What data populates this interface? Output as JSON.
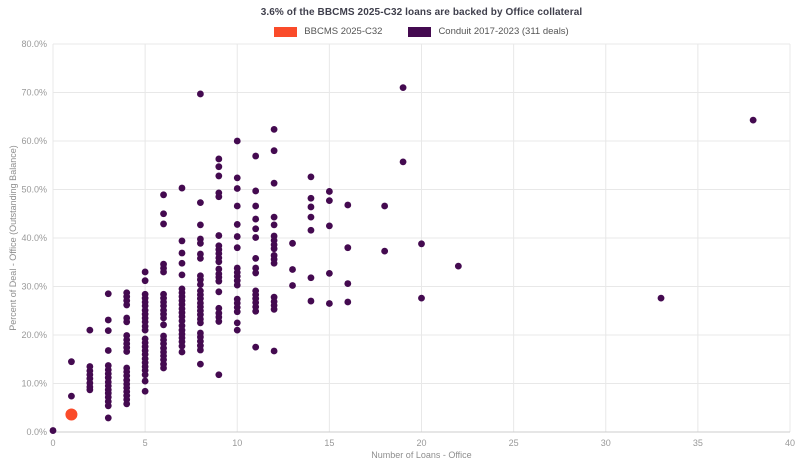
{
  "header": {
    "title": "3.6% of the BBCMS 2025-C32 loans are backed by Office collateral"
  },
  "legend": {
    "items": [
      {
        "label": "BBCMS 2025-C32",
        "color": "#fa4b2a"
      },
      {
        "label": "Conduit 2017-2023 (311 deals)",
        "color": "#440a50"
      }
    ]
  },
  "colors": {
    "background": "#ffffff",
    "grid": "#e8e8e8",
    "axis_line": "#cccccc",
    "title_text": "#3f3f4c",
    "tick_text": "#999999",
    "axis_label_text": "#8e8e8e",
    "legend_text": "#555555",
    "bbcms_orange": "#fa4b2a",
    "conduit_purple": "#440a50"
  },
  "chart_data": {
    "type": "scatter",
    "title": "3.6% of the BBCMS 2025-C32 loans are backed by Office collateral",
    "xlabel": "Number of Loans - Office",
    "ylabel": "Percent of Deal - Office (Outstanding Balance)",
    "xlim": [
      0,
      40
    ],
    "ylim": [
      0,
      80
    ],
    "x_ticks": [
      0,
      5,
      10,
      15,
      20,
      25,
      30,
      35,
      40
    ],
    "x_tick_labels": [
      "0",
      "5",
      "10",
      "15",
      "20",
      "25",
      "30",
      "35",
      "40"
    ],
    "y_ticks": [
      0,
      10,
      20,
      30,
      40,
      50,
      60,
      70,
      80
    ],
    "y_tick_labels": [
      "0.0%",
      "10.0%",
      "20.0%",
      "30.0%",
      "40.0%",
      "50.0%",
      "60.0%",
      "70.0%",
      "80.0%"
    ],
    "grid": true,
    "legend_position": "top-center",
    "series": [
      {
        "name": "Conduit 2017-2023 (311 deals)",
        "color": "#440a50",
        "marker_radius": 3.4,
        "points": [
          [
            0,
            0.3
          ],
          [
            1,
            14.5
          ],
          [
            1,
            7.4
          ],
          [
            2,
            21.0
          ],
          [
            2,
            13.5
          ],
          [
            2,
            12.6
          ],
          [
            2,
            11.8
          ],
          [
            2,
            11.0
          ],
          [
            2,
            10.1
          ],
          [
            2,
            9.3
          ],
          [
            2,
            8.7
          ],
          [
            3,
            28.5
          ],
          [
            3,
            23.1
          ],
          [
            3,
            20.9
          ],
          [
            3,
            16.8
          ],
          [
            3,
            13.7
          ],
          [
            3,
            12.8
          ],
          [
            3,
            12.0
          ],
          [
            3,
            11.2
          ],
          [
            3,
            10.3
          ],
          [
            3,
            9.5
          ],
          [
            3,
            8.7
          ],
          [
            3,
            8.0
          ],
          [
            3,
            7.2
          ],
          [
            3,
            6.3
          ],
          [
            3,
            5.4
          ],
          [
            3,
            2.9
          ],
          [
            4,
            28.7
          ],
          [
            4,
            27.9
          ],
          [
            4,
            27.1
          ],
          [
            4,
            26.2
          ],
          [
            4,
            23.5
          ],
          [
            4,
            22.7
          ],
          [
            4,
            19.9
          ],
          [
            4,
            19.0
          ],
          [
            4,
            18.2
          ],
          [
            4,
            17.4
          ],
          [
            4,
            16.6
          ],
          [
            4,
            13.2
          ],
          [
            4,
            12.4
          ],
          [
            4,
            11.6
          ],
          [
            4,
            10.7
          ],
          [
            4,
            9.9
          ],
          [
            4,
            9.1
          ],
          [
            4,
            8.3
          ],
          [
            4,
            7.5
          ],
          [
            4,
            6.7
          ],
          [
            4,
            5.8
          ],
          [
            5,
            33.0
          ],
          [
            5,
            31.2
          ],
          [
            5,
            28.4
          ],
          [
            5,
            27.6
          ],
          [
            5,
            26.8
          ],
          [
            5,
            26.0
          ],
          [
            5,
            25.1
          ],
          [
            5,
            24.3
          ],
          [
            5,
            23.5
          ],
          [
            5,
            22.7
          ],
          [
            5,
            21.8
          ],
          [
            5,
            21.0
          ],
          [
            5,
            19.2
          ],
          [
            5,
            18.4
          ],
          [
            5,
            17.6
          ],
          [
            5,
            16.8
          ],
          [
            5,
            16.0
          ],
          [
            5,
            15.1
          ],
          [
            5,
            14.3
          ],
          [
            5,
            13.5
          ],
          [
            5,
            12.7
          ],
          [
            5,
            11.8
          ],
          [
            5,
            10.5
          ],
          [
            5,
            8.4
          ],
          [
            6,
            48.9
          ],
          [
            6,
            45.0
          ],
          [
            6,
            42.9
          ],
          [
            6,
            34.6
          ],
          [
            6,
            33.8
          ],
          [
            6,
            33.0
          ],
          [
            6,
            28.4
          ],
          [
            6,
            27.6
          ],
          [
            6,
            26.8
          ],
          [
            6,
            26.0
          ],
          [
            6,
            25.1
          ],
          [
            6,
            24.3
          ],
          [
            6,
            23.5
          ],
          [
            6,
            22.1
          ],
          [
            6,
            19.8
          ],
          [
            6,
            19.0
          ],
          [
            6,
            18.2
          ],
          [
            6,
            17.3
          ],
          [
            6,
            16.5
          ],
          [
            6,
            15.7
          ],
          [
            6,
            14.9
          ],
          [
            6,
            14.0
          ],
          [
            6,
            13.2
          ],
          [
            7,
            50.3
          ],
          [
            7,
            39.4
          ],
          [
            7,
            36.9
          ],
          [
            7,
            34.8
          ],
          [
            7,
            32.4
          ],
          [
            7,
            29.5
          ],
          [
            7,
            28.7
          ],
          [
            7,
            27.9
          ],
          [
            7,
            27.1
          ],
          [
            7,
            26.3
          ],
          [
            7,
            25.4
          ],
          [
            7,
            24.6
          ],
          [
            7,
            23.8
          ],
          [
            7,
            22.9
          ],
          [
            7,
            21.9
          ],
          [
            7,
            21.0
          ],
          [
            7,
            20.2
          ],
          [
            7,
            19.4
          ],
          [
            7,
            18.6
          ],
          [
            7,
            17.7
          ],
          [
            7,
            16.5
          ],
          [
            8,
            69.7
          ],
          [
            8,
            47.3
          ],
          [
            8,
            42.7
          ],
          [
            8,
            39.8
          ],
          [
            8,
            38.9
          ],
          [
            8,
            36.7
          ],
          [
            8,
            35.8
          ],
          [
            8,
            32.2
          ],
          [
            8,
            31.4
          ],
          [
            8,
            30.4
          ],
          [
            8,
            29.1
          ],
          [
            8,
            28.3
          ],
          [
            8,
            27.5
          ],
          [
            8,
            26.6
          ],
          [
            8,
            25.8
          ],
          [
            8,
            25.0
          ],
          [
            8,
            24.2
          ],
          [
            8,
            23.3
          ],
          [
            8,
            22.5
          ],
          [
            8,
            20.4
          ],
          [
            8,
            19.6
          ],
          [
            8,
            18.7
          ],
          [
            8,
            17.8
          ],
          [
            8,
            16.9
          ],
          [
            8,
            14.0
          ],
          [
            9,
            56.3
          ],
          [
            9,
            54.7
          ],
          [
            9,
            52.8
          ],
          [
            9,
            49.3
          ],
          [
            9,
            48.5
          ],
          [
            9,
            40.5
          ],
          [
            9,
            38.4
          ],
          [
            9,
            37.6
          ],
          [
            9,
            36.8
          ],
          [
            9,
            35.9
          ],
          [
            9,
            35.1
          ],
          [
            9,
            33.6
          ],
          [
            9,
            32.6
          ],
          [
            9,
            31.9
          ],
          [
            9,
            31.1
          ],
          [
            9,
            28.9
          ],
          [
            9,
            25.5
          ],
          [
            9,
            24.5
          ],
          [
            9,
            23.7
          ],
          [
            9,
            22.8
          ],
          [
            9,
            11.8
          ],
          [
            10,
            60.0
          ],
          [
            10,
            52.4
          ],
          [
            10,
            50.2
          ],
          [
            10,
            46.6
          ],
          [
            10,
            42.8
          ],
          [
            10,
            40.3
          ],
          [
            10,
            38.0
          ],
          [
            10,
            33.8
          ],
          [
            10,
            32.9
          ],
          [
            10,
            32.1
          ],
          [
            10,
            31.2
          ],
          [
            10,
            30.3
          ],
          [
            10,
            27.4
          ],
          [
            10,
            26.6
          ],
          [
            10,
            25.7
          ],
          [
            10,
            24.8
          ],
          [
            10,
            22.5
          ],
          [
            10,
            21.0
          ],
          [
            11,
            56.9
          ],
          [
            11,
            49.7
          ],
          [
            11,
            46.6
          ],
          [
            11,
            43.9
          ],
          [
            11,
            41.9
          ],
          [
            11,
            40.1
          ],
          [
            11,
            35.8
          ],
          [
            11,
            33.8
          ],
          [
            11,
            32.8
          ],
          [
            11,
            29.1
          ],
          [
            11,
            28.3
          ],
          [
            11,
            27.5
          ],
          [
            11,
            26.7
          ],
          [
            11,
            25.8
          ],
          [
            11,
            24.9
          ],
          [
            11,
            17.5
          ],
          [
            12,
            62.4
          ],
          [
            12,
            58.0
          ],
          [
            12,
            51.3
          ],
          [
            12,
            44.3
          ],
          [
            12,
            42.7
          ],
          [
            12,
            40.4
          ],
          [
            12,
            39.5
          ],
          [
            12,
            38.6
          ],
          [
            12,
            37.8
          ],
          [
            12,
            36.4
          ],
          [
            12,
            35.6
          ],
          [
            12,
            34.8
          ],
          [
            12,
            27.8
          ],
          [
            12,
            26.9
          ],
          [
            12,
            26.1
          ],
          [
            12,
            25.3
          ],
          [
            12,
            16.7
          ],
          [
            13,
            38.9
          ],
          [
            13,
            33.5
          ],
          [
            13,
            30.2
          ],
          [
            14,
            52.6
          ],
          [
            14,
            48.2
          ],
          [
            14,
            46.4
          ],
          [
            14,
            44.3
          ],
          [
            14,
            41.6
          ],
          [
            14,
            31.8
          ],
          [
            14,
            27.0
          ],
          [
            15,
            49.6
          ],
          [
            15,
            47.7
          ],
          [
            15,
            42.5
          ],
          [
            15,
            32.7
          ],
          [
            15,
            26.5
          ],
          [
            16,
            46.8
          ],
          [
            16,
            38.0
          ],
          [
            16,
            30.6
          ],
          [
            16,
            26.8
          ],
          [
            18,
            46.6
          ],
          [
            18,
            37.3
          ],
          [
            19,
            71.0
          ],
          [
            19,
            55.7
          ],
          [
            20,
            38.8
          ],
          [
            20,
            27.6
          ],
          [
            22,
            34.2
          ],
          [
            33,
            27.6
          ],
          [
            38,
            64.3
          ]
        ]
      },
      {
        "name": "BBCMS 2025-C32",
        "color": "#fa4b2a",
        "marker_radius": 6,
        "points": [
          [
            1,
            3.6
          ]
        ]
      }
    ]
  }
}
